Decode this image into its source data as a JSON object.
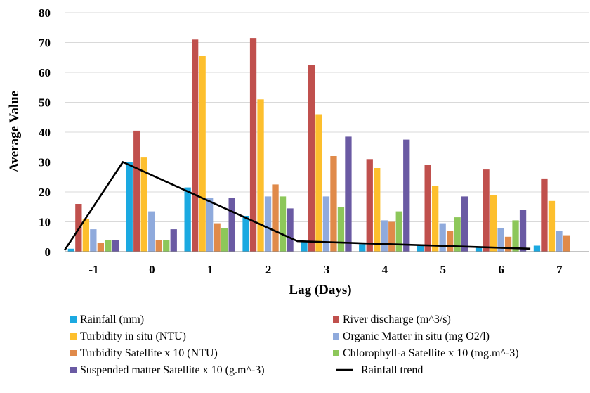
{
  "chart_data": {
    "type": "bar",
    "title": "",
    "xlabel": "Lag (Days)",
    "ylabel": "Average Value",
    "ylim": [
      0,
      80
    ],
    "yticks": [
      0,
      10,
      20,
      30,
      40,
      50,
      60,
      70,
      80
    ],
    "grid": true,
    "legend_position": "bottom",
    "categories": [
      "-1",
      "0",
      "1",
      "2",
      "3",
      "4",
      "5",
      "6",
      "7"
    ],
    "series": [
      {
        "name": "Rainfall (mm)",
        "color": "#1ba9e1",
        "values": [
          1,
          30,
          21.5,
          12,
          3.5,
          2.5,
          2,
          1.5,
          2
        ]
      },
      {
        "name": "River discharge (m^3/s)",
        "color": "#c0504d",
        "values": [
          16,
          40.5,
          71,
          71.5,
          62.5,
          31,
          29,
          27.5,
          24.5
        ]
      },
      {
        "name": "Turbidity in situ (NTU)",
        "color": "#fdbf2d",
        "values": [
          11,
          31.5,
          65.5,
          51,
          46,
          28,
          22,
          19,
          17
        ]
      },
      {
        "name": "Organic Matter in situ (mg O2/l)",
        "color": "#8faadc",
        "values": [
          7.5,
          13.5,
          18,
          18.5,
          18.5,
          10.5,
          9.5,
          8,
          7
        ]
      },
      {
        "name": "Turbidity Satellite x 10 (NTU)",
        "color": "#e08a4a",
        "values": [
          3,
          4,
          9.5,
          22.5,
          32,
          10,
          7,
          5,
          5.5
        ]
      },
      {
        "name": "Chlorophyll-a Satellite x 10 (mg.m^-3)",
        "color": "#8dc75a",
        "values": [
          4,
          4,
          8,
          18.5,
          15,
          13.5,
          11.5,
          10.5,
          null
        ]
      },
      {
        "name": "Suspended matter Satellite x 10 (g.m^-3)",
        "color": "#6a5aa3",
        "values": [
          4,
          7.5,
          18,
          14.5,
          38.5,
          37.5,
          18.5,
          14,
          null
        ]
      }
    ],
    "trend_line": {
      "name": "Rainfall trend",
      "color": "#000000",
      "points": [
        {
          "x": "-1.5",
          "y": 0.5
        },
        {
          "x": "-0.5",
          "y": 30
        },
        {
          "x": "2.5",
          "y": 3.5
        },
        {
          "x": "6.5",
          "y": 1
        }
      ]
    }
  }
}
